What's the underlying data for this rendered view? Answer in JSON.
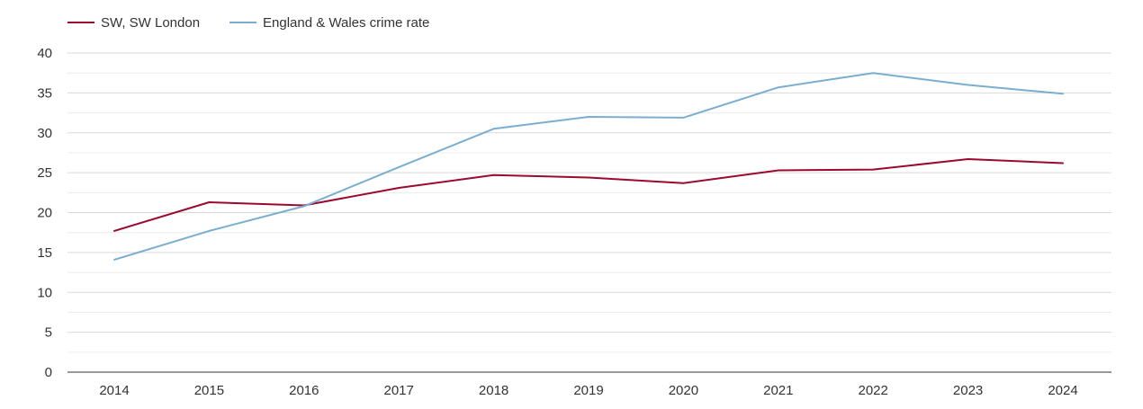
{
  "chart_data": {
    "type": "line",
    "title": "",
    "xlabel": "",
    "ylabel": "",
    "categories": [
      "2014",
      "2015",
      "2016",
      "2017",
      "2018",
      "2019",
      "2020",
      "2021",
      "2022",
      "2023",
      "2024"
    ],
    "ylim": [
      0,
      40
    ],
    "yticks": [
      0,
      5,
      10,
      15,
      20,
      25,
      30,
      35,
      40
    ],
    "grid": true,
    "legend_position": "top-left",
    "series": [
      {
        "name": "SW, SW London",
        "color": "#9b0a2e",
        "values": [
          17.7,
          21.3,
          20.9,
          23.1,
          24.7,
          24.4,
          23.7,
          25.3,
          25.4,
          26.7,
          26.2
        ]
      },
      {
        "name": "England & Wales crime rate",
        "color": "#7aaed0",
        "values": [
          14.1,
          17.7,
          20.8,
          25.7,
          30.5,
          32.0,
          31.9,
          35.7,
          37.5,
          36.0,
          34.9
        ]
      }
    ]
  }
}
